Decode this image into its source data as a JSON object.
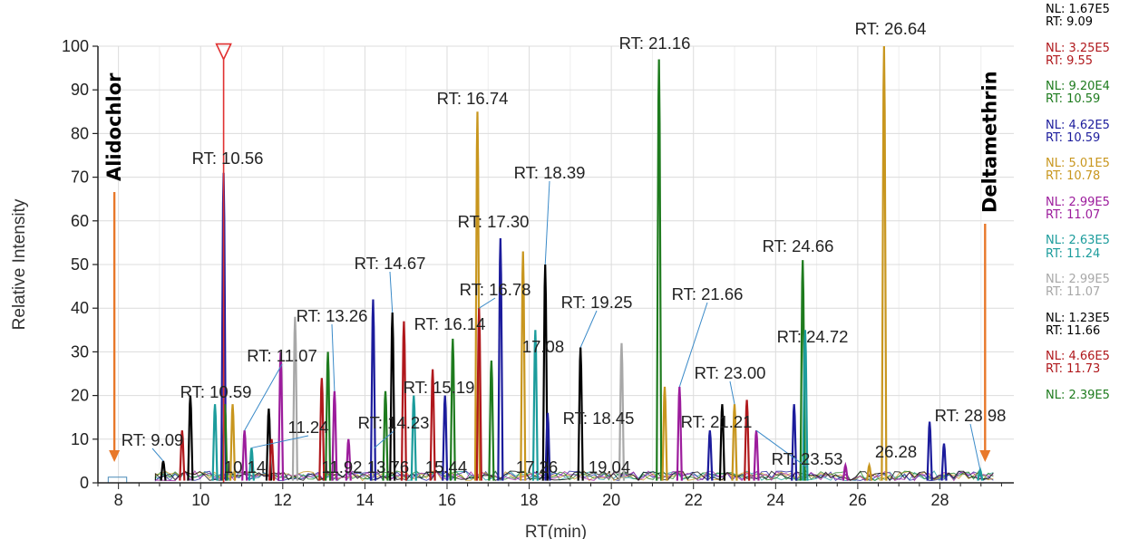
{
  "chart_data": {
    "type": "line",
    "xlabel": "RT(min)",
    "ylabel": "Relative Intensity",
    "xlim": [
      7.5,
      29.8
    ],
    "ylim": [
      0,
      100
    ],
    "x_ticks": [
      8,
      10,
      12,
      14,
      16,
      18,
      20,
      22,
      24,
      26,
      28
    ],
    "y_ticks": [
      0,
      10,
      20,
      30,
      40,
      50,
      60,
      70,
      80,
      90,
      100
    ],
    "grid": true,
    "legend_position": "right",
    "legend": [
      {
        "nl": "NL: 1.67E5",
        "rt": "RT: 9.09",
        "color": "#000000"
      },
      {
        "nl": "NL: 3.25E5",
        "rt": "RT: 9.55",
        "color": "#b0181c"
      },
      {
        "nl": "NL: 9.20E4",
        "rt": "RT: 10.59",
        "color": "#1e7b1e"
      },
      {
        "nl": "NL: 4.62E5",
        "rt": "RT: 10.59",
        "color": "#1c1c9c"
      },
      {
        "nl": "NL: 5.01E5",
        "rt": "RT: 10.78",
        "color": "#c8961e"
      },
      {
        "nl": "NL: 2.99E5",
        "rt": "RT: 11.07",
        "color": "#9c1c9c"
      },
      {
        "nl": "NL: 2.63E5",
        "rt": "RT: 11.24",
        "color": "#1c9c9c"
      },
      {
        "nl": "NL: 2.99E5",
        "rt": "RT: 11.07",
        "color": "#a8a8a8"
      },
      {
        "nl": "NL: 1.23E5",
        "rt": "RT: 11.66",
        "color": "#000000"
      },
      {
        "nl": "NL: 4.66E5",
        "rt": "RT: 11.73",
        "color": "#b0181c"
      },
      {
        "nl": "NL: 2.39E5",
        "rt": "",
        "color": "#1e7b1e"
      }
    ],
    "peaks": [
      {
        "rt": 9.09,
        "height": 5,
        "color": "#000000"
      },
      {
        "rt": 9.55,
        "height": 12,
        "color": "#b0181c"
      },
      {
        "rt": 9.75,
        "height": 20,
        "color": "#000000"
      },
      {
        "rt": 10.35,
        "height": 18,
        "color": "#1c9c9c"
      },
      {
        "rt": 10.56,
        "height": 71,
        "color": "#1c1c9c"
      },
      {
        "rt": 10.59,
        "height": 18,
        "color": "#1e7b1e"
      },
      {
        "rt": 10.78,
        "height": 18,
        "color": "#c8961e"
      },
      {
        "rt": 11.07,
        "height": 12,
        "color": "#9c1c9c"
      },
      {
        "rt": 11.24,
        "height": 8,
        "color": "#1c9c9c"
      },
      {
        "rt": 11.66,
        "height": 17,
        "color": "#000000"
      },
      {
        "rt": 11.73,
        "height": 10,
        "color": "#b0181c"
      },
      {
        "rt": 11.95,
        "height": 30,
        "color": "#9c1c9c"
      },
      {
        "rt": 12.3,
        "height": 38,
        "color": "#a8a8a8"
      },
      {
        "rt": 12.95,
        "height": 24,
        "color": "#b0181c"
      },
      {
        "rt": 13.1,
        "height": 30,
        "color": "#1e7b1e"
      },
      {
        "rt": 13.26,
        "height": 21,
        "color": "#9c1c9c"
      },
      {
        "rt": 13.6,
        "height": 10,
        "color": "#9c1c9c"
      },
      {
        "rt": 14.2,
        "height": 42,
        "color": "#1c1c9c"
      },
      {
        "rt": 14.5,
        "height": 21,
        "color": "#1e7b1e"
      },
      {
        "rt": 14.67,
        "height": 39,
        "color": "#000000"
      },
      {
        "rt": 14.95,
        "height": 37,
        "color": "#b0181c"
      },
      {
        "rt": 15.19,
        "height": 20,
        "color": "#1c9c9c"
      },
      {
        "rt": 15.65,
        "height": 26,
        "color": "#b0181c"
      },
      {
        "rt": 15.95,
        "height": 20,
        "color": "#1c1c9c"
      },
      {
        "rt": 16.14,
        "height": 33,
        "color": "#1e7b1e"
      },
      {
        "rt": 16.74,
        "height": 85,
        "color": "#c8961e"
      },
      {
        "rt": 16.78,
        "height": 40,
        "color": "#b0181c"
      },
      {
        "rt": 17.08,
        "height": 28,
        "color": "#1e7b1e"
      },
      {
        "rt": 17.3,
        "height": 56,
        "color": "#1c1c9c"
      },
      {
        "rt": 17.85,
        "height": 53,
        "color": "#c8961e"
      },
      {
        "rt": 18.15,
        "height": 35,
        "color": "#1c9c9c"
      },
      {
        "rt": 18.39,
        "height": 50,
        "color": "#000000"
      },
      {
        "rt": 18.45,
        "height": 16,
        "color": "#1c1c9c"
      },
      {
        "rt": 19.25,
        "height": 31,
        "color": "#000000"
      },
      {
        "rt": 20.25,
        "height": 32,
        "color": "#a8a8a8"
      },
      {
        "rt": 21.16,
        "height": 97,
        "color": "#1e7b1e"
      },
      {
        "rt": 21.3,
        "height": 22,
        "color": "#c8961e"
      },
      {
        "rt": 21.66,
        "height": 22,
        "color": "#9c1c9c"
      },
      {
        "rt": 22.4,
        "height": 12,
        "color": "#1c1c9c"
      },
      {
        "rt": 22.7,
        "height": 18,
        "color": "#000000"
      },
      {
        "rt": 23.0,
        "height": 18,
        "color": "#c8961e"
      },
      {
        "rt": 23.3,
        "height": 19,
        "color": "#b0181c"
      },
      {
        "rt": 23.53,
        "height": 12,
        "color": "#9c1c9c"
      },
      {
        "rt": 24.45,
        "height": 18,
        "color": "#1c1c9c"
      },
      {
        "rt": 24.66,
        "height": 51,
        "color": "#1e7b1e"
      },
      {
        "rt": 24.72,
        "height": 35,
        "color": "#1c9c9c"
      },
      {
        "rt": 25.7,
        "height": 4,
        "color": "#9c1c9c"
      },
      {
        "rt": 26.28,
        "height": 4,
        "color": "#c8961e"
      },
      {
        "rt": 26.64,
        "height": 100,
        "color": "#c8961e"
      },
      {
        "rt": 27.75,
        "height": 14,
        "color": "#1c1c9c"
      },
      {
        "rt": 28.1,
        "height": 9,
        "color": "#1c1c9c"
      },
      {
        "rt": 28.98,
        "height": 3,
        "color": "#1c9c9c"
      }
    ],
    "rt_labels": [
      {
        "text": "RT: 9.09",
        "x": 9.09,
        "y": 5
      },
      {
        "text": "RT: 10.56",
        "x": 10.56,
        "y": 71
      },
      {
        "text": "RT: 10.59",
        "x": 10.59,
        "y": 18
      },
      {
        "text": "RT: 11.07",
        "x": 11.07,
        "y": 12
      },
      {
        "text": "11.24",
        "x": 11.24,
        "y": 8
      },
      {
        "text": "RT: 13.26",
        "x": 13.26,
        "y": 21
      },
      {
        "text": "RT: 14.23",
        "x": 14.23,
        "y": 8
      },
      {
        "text": "RT: 14.67",
        "x": 14.67,
        "y": 39
      },
      {
        "text": "RT: 15.19",
        "x": 15.19,
        "y": 20
      },
      {
        "text": "RT: 16.14",
        "x": 16.14,
        "y": 33
      },
      {
        "text": "RT: 16.74",
        "x": 16.74,
        "y": 85
      },
      {
        "text": "RT: 16.78",
        "x": 16.78,
        "y": 40
      },
      {
        "text": "17.08",
        "x": 17.08,
        "y": 28
      },
      {
        "text": "RT: 17.30",
        "x": 17.3,
        "y": 56
      },
      {
        "text": "RT: 18.39",
        "x": 18.39,
        "y": 50
      },
      {
        "text": "RT: 18.45",
        "x": 18.45,
        "y": 16
      },
      {
        "text": "RT: 19.25",
        "x": 19.25,
        "y": 31
      },
      {
        "text": "RT: 21.16",
        "x": 21.16,
        "y": 97
      },
      {
        "text": "RT: 21.66",
        "x": 21.66,
        "y": 22
      },
      {
        "text": "RT: 21.21",
        "x": 21.21,
        "y": 12
      },
      {
        "text": "RT: 23.00",
        "x": 23.0,
        "y": 18
      },
      {
        "text": "RT: 23.53",
        "x": 23.53,
        "y": 12
      },
      {
        "text": "RT: 24.66",
        "x": 24.66,
        "y": 51
      },
      {
        "text": "RT: 24.72",
        "x": 24.72,
        "y": 35
      },
      {
        "text": "26.28",
        "x": 26.28,
        "y": 4
      },
      {
        "text": "RT: 26.64",
        "x": 26.64,
        "y": 100
      },
      {
        "text": "RT: 28.98",
        "x": 28.98,
        "y": 3
      },
      {
        "text": "10.14",
        "x": 10.14,
        "y": 0
      },
      {
        "text": "11.92",
        "x": 11.92,
        "y": 0
      },
      {
        "text": "13.76",
        "x": 13.76,
        "y": 0
      },
      {
        "text": "15.44",
        "x": 15.44,
        "y": 0
      },
      {
        "text": "17.26",
        "x": 17.26,
        "y": 0
      },
      {
        "text": "19.04",
        "x": 19.04,
        "y": 0
      }
    ],
    "annotations": [
      {
        "text": "Alidochlor",
        "arrow_x": 7.9,
        "color": "#e8782a"
      },
      {
        "text": "Deltamethrin",
        "arrow_x": 29.1,
        "color": "#e8782a"
      }
    ],
    "marker": {
      "x": 10.56,
      "symbol": "inverted-triangle",
      "color": "#e03030"
    }
  }
}
